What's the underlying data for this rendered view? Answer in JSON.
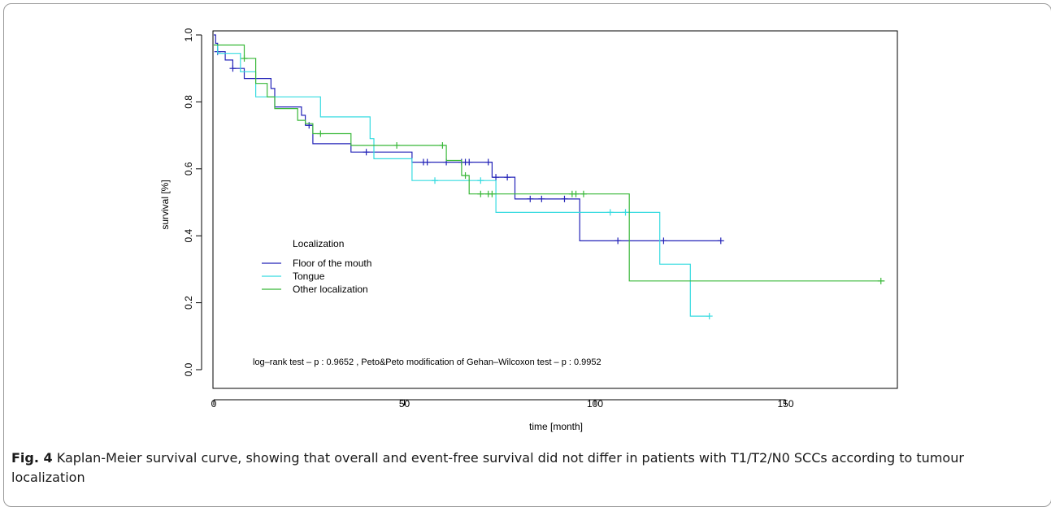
{
  "chart_data": {
    "type": "line",
    "title": "",
    "xlabel": "time [month]",
    "ylabel": "survival [%]",
    "xlim": [
      0,
      180
    ],
    "ylim": [
      0.0,
      1.0
    ],
    "xticks": [
      0,
      50,
      100,
      150
    ],
    "xtick_labels": [
      "0",
      "50",
      "100",
      "150"
    ],
    "yticks": [
      0.0,
      0.2,
      0.4,
      0.6,
      0.8,
      1.0
    ],
    "ytick_labels": [
      "0.0",
      "0.2",
      "0.4",
      "0.6",
      "0.8",
      "1.0"
    ],
    "grid": false,
    "legend": {
      "title": "Localization",
      "placement": "left"
    },
    "series": [
      {
        "name": "Floor of the mouth",
        "color": "#2323b8",
        "steps": [
          [
            0,
            1.0
          ],
          [
            0.5,
            0.975
          ],
          [
            1,
            0.95
          ],
          [
            3,
            0.925
          ],
          [
            5,
            0.9
          ],
          [
            8,
            0.87
          ],
          [
            11,
            0.87
          ],
          [
            15,
            0.84
          ],
          [
            16,
            0.785
          ],
          [
            23,
            0.76
          ],
          [
            24,
            0.73
          ],
          [
            26,
            0.675
          ],
          [
            36,
            0.65
          ],
          [
            52,
            0.62
          ],
          [
            73,
            0.575
          ],
          [
            79,
            0.51
          ],
          [
            96,
            0.385
          ],
          [
            133,
            0.385
          ]
        ],
        "censored": [
          [
            1,
            0.95
          ],
          [
            5,
            0.9
          ],
          [
            25,
            0.73
          ],
          [
            40,
            0.65
          ],
          [
            55,
            0.62
          ],
          [
            56,
            0.62
          ],
          [
            61,
            0.62
          ],
          [
            65,
            0.62
          ],
          [
            66,
            0.62
          ],
          [
            67,
            0.62
          ],
          [
            72,
            0.62
          ],
          [
            74,
            0.575
          ],
          [
            77,
            0.575
          ],
          [
            83,
            0.51
          ],
          [
            86,
            0.51
          ],
          [
            92,
            0.51
          ],
          [
            106,
            0.385
          ],
          [
            118,
            0.385
          ],
          [
            133,
            0.385
          ]
        ]
      },
      {
        "name": "Tongue",
        "color": "#36dbe0",
        "steps": [
          [
            0,
            0.97
          ],
          [
            1,
            0.945
          ],
          [
            7,
            0.89
          ],
          [
            11,
            0.815
          ],
          [
            15,
            0.815
          ],
          [
            28,
            0.755
          ],
          [
            41,
            0.69
          ],
          [
            42,
            0.63
          ],
          [
            52,
            0.565
          ],
          [
            74,
            0.47
          ],
          [
            117,
            0.315
          ],
          [
            125,
            0.16
          ],
          [
            130,
            0.16
          ]
        ],
        "censored": [
          [
            58,
            0.565
          ],
          [
            70,
            0.565
          ],
          [
            104,
            0.47
          ],
          [
            108,
            0.47
          ],
          [
            130,
            0.16
          ]
        ]
      },
      {
        "name": "Other localization",
        "color": "#38b838",
        "steps": [
          [
            0,
            0.97
          ],
          [
            8,
            0.93
          ],
          [
            11,
            0.855
          ],
          [
            14,
            0.815
          ],
          [
            16,
            0.78
          ],
          [
            22,
            0.745
          ],
          [
            24,
            0.735
          ],
          [
            26,
            0.705
          ],
          [
            36,
            0.67
          ],
          [
            61,
            0.625
          ],
          [
            65,
            0.58
          ],
          [
            67,
            0.525
          ],
          [
            109,
            0.265
          ],
          [
            176,
            0.265
          ]
        ],
        "censored": [
          [
            8,
            0.93
          ],
          [
            28,
            0.705
          ],
          [
            48,
            0.67
          ],
          [
            60,
            0.67
          ],
          [
            66,
            0.58
          ],
          [
            70,
            0.525
          ],
          [
            72,
            0.525
          ],
          [
            73,
            0.525
          ],
          [
            94,
            0.525
          ],
          [
            95,
            0.525
          ],
          [
            97,
            0.525
          ],
          [
            175,
            0.265
          ]
        ]
      }
    ],
    "annotation": "log–rank test – p : 0.9652 ,   Peto&Peto modification of Gehan–Wilcoxon test – p : 0.9952"
  },
  "caption": {
    "label": "Fig. 4",
    "text": " Kaplan-Meier survival curve, showing that overall and event-free survival did not differ in patients with T1/T2/N0 SCCs according to tumour localization"
  }
}
